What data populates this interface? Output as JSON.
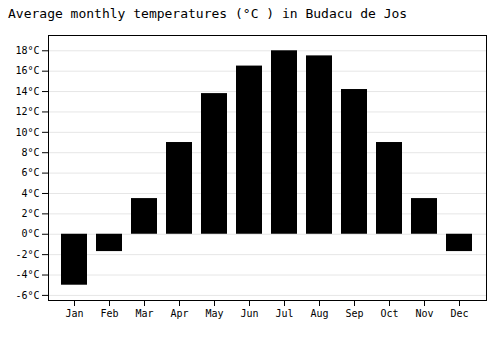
{
  "chart_data": {
    "type": "bar",
    "title": "Average monthly temperatures (°C ) in Budacu de Jos",
    "categories": [
      "Jan",
      "Feb",
      "Mar",
      "Apr",
      "May",
      "Jun",
      "Jul",
      "Aug",
      "Sep",
      "Oct",
      "Nov",
      "Dec"
    ],
    "values": [
      -5.0,
      -1.7,
      3.5,
      9.0,
      13.8,
      16.5,
      18.0,
      17.5,
      14.2,
      9.0,
      3.5,
      -1.7
    ],
    "ylim": [
      -6.5,
      19.5
    ],
    "yticks": [
      {
        "value": -6,
        "label": "-6°C"
      },
      {
        "value": -4,
        "label": "-4°C"
      },
      {
        "value": -2,
        "label": "-2°C"
      },
      {
        "value": 0,
        "label": "0°C"
      },
      {
        "value": 2,
        "label": "2°C"
      },
      {
        "value": 4,
        "label": "4°C"
      },
      {
        "value": 6,
        "label": "6°C"
      },
      {
        "value": 8,
        "label": "8°C"
      },
      {
        "value": 10,
        "label": "10°C"
      },
      {
        "value": 12,
        "label": "12°C"
      },
      {
        "value": 14,
        "label": "14°C"
      },
      {
        "value": 16,
        "label": "16°C"
      },
      {
        "value": 18,
        "label": "18°C"
      }
    ],
    "grid": true
  }
}
